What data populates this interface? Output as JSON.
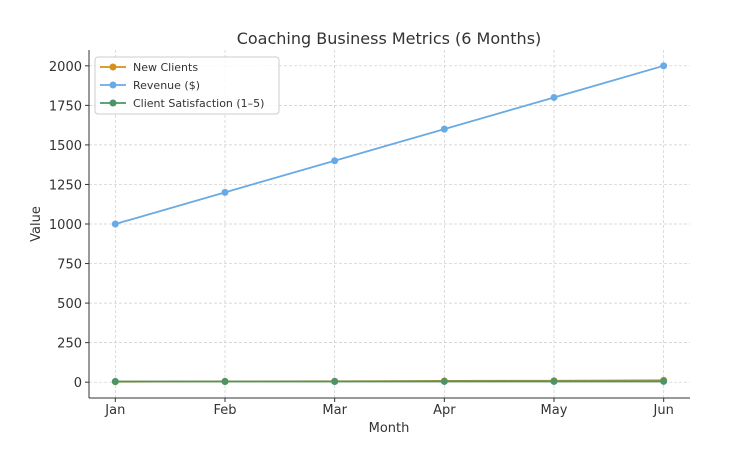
{
  "chart_data": {
    "type": "line",
    "title": "Coaching Business Metrics (6 Months)",
    "xlabel": "Month",
    "ylabel": "Value",
    "categories": [
      "Jan",
      "Feb",
      "Mar",
      "Apr",
      "May",
      "Jun"
    ],
    "ylim": [
      -100,
      2100
    ],
    "yticks": [
      0,
      250,
      500,
      750,
      1000,
      1250,
      1500,
      1750,
      2000
    ],
    "grid": true,
    "legend": "top-left",
    "series": [
      {
        "name": "New Clients",
        "color": "#d4901a",
        "values": [
          3,
          5,
          6,
          8,
          9,
          12
        ]
      },
      {
        "name": "Revenue ($)",
        "color": "#6aaae4",
        "values": [
          1000,
          1200,
          1400,
          1600,
          1800,
          2000
        ]
      },
      {
        "name": "Client Satisfaction (1–5)",
        "color": "#4a9468",
        "values": [
          4.2,
          4.4,
          4.5,
          4.6,
          4.7,
          4.8
        ]
      }
    ]
  }
}
